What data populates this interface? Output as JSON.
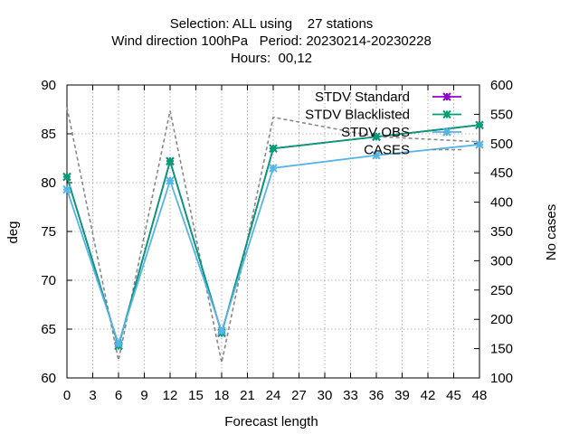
{
  "title_lines": [
    "Selection: ALL using    27 stations",
    "Wind direction 100hPa   Period: 20230214-20230228",
    "Hours:  00,12"
  ],
  "chart_data": {
    "type": "line",
    "xlabel": "Forecast length",
    "ylabel": "deg",
    "y2label": "No cases",
    "xlim": [
      0,
      48
    ],
    "ylim": [
      60,
      90
    ],
    "y2lim": [
      100,
      600
    ],
    "xticks": [
      0,
      3,
      6,
      9,
      12,
      15,
      18,
      21,
      24,
      27,
      30,
      33,
      36,
      39,
      42,
      45,
      48
    ],
    "yticks": [
      60,
      65,
      70,
      75,
      80,
      85,
      90
    ],
    "y2ticks": [
      100,
      150,
      200,
      250,
      300,
      350,
      400,
      450,
      500,
      550,
      600
    ],
    "grid": true,
    "legend_position": "top-right",
    "x": [
      0,
      6,
      12,
      18,
      24,
      36,
      48
    ],
    "series": [
      {
        "name": "STDV Standard",
        "axis": "left",
        "color": "#9400d3",
        "marker": "x",
        "values": [
          80.6,
          63.3,
          82.2,
          64.6,
          83.5,
          84.7,
          85.9
        ]
      },
      {
        "name": "STDV Blacklisted",
        "axis": "left",
        "color": "#009e73",
        "marker": "x",
        "values": [
          80.6,
          63.3,
          82.2,
          64.6,
          83.5,
          84.7,
          85.9
        ]
      },
      {
        "name": "STDV OBS",
        "axis": "left",
        "color": "#56b4e9",
        "marker": "x",
        "values": [
          79.3,
          63.5,
          80.2,
          64.8,
          81.5,
          82.8,
          83.9
        ]
      },
      {
        "name": "CASES",
        "axis": "right",
        "color": "#888888",
        "dashed": true,
        "values": [
          562,
          130,
          556,
          126,
          545,
          512,
          503
        ]
      }
    ]
  }
}
